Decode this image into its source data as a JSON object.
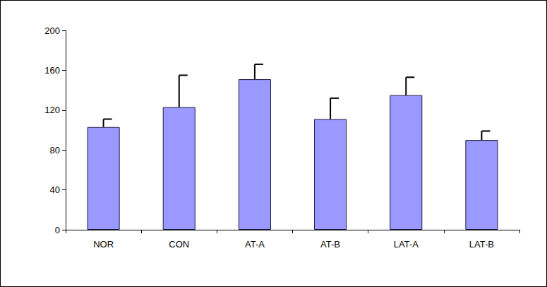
{
  "chart_data": {
    "type": "bar",
    "categories": [
      "NOR",
      "CON",
      "AT-A",
      "AT-B",
      "LAT-A",
      "LAT-B"
    ],
    "values": [
      103,
      123,
      151,
      111,
      135,
      90
    ],
    "errors": [
      8,
      32,
      15,
      21,
      18,
      9
    ],
    "color": "#9999ff",
    "ylim": [
      0,
      200
    ],
    "yticks": [
      0,
      40,
      80,
      120,
      160,
      200
    ],
    "grid": false
  }
}
